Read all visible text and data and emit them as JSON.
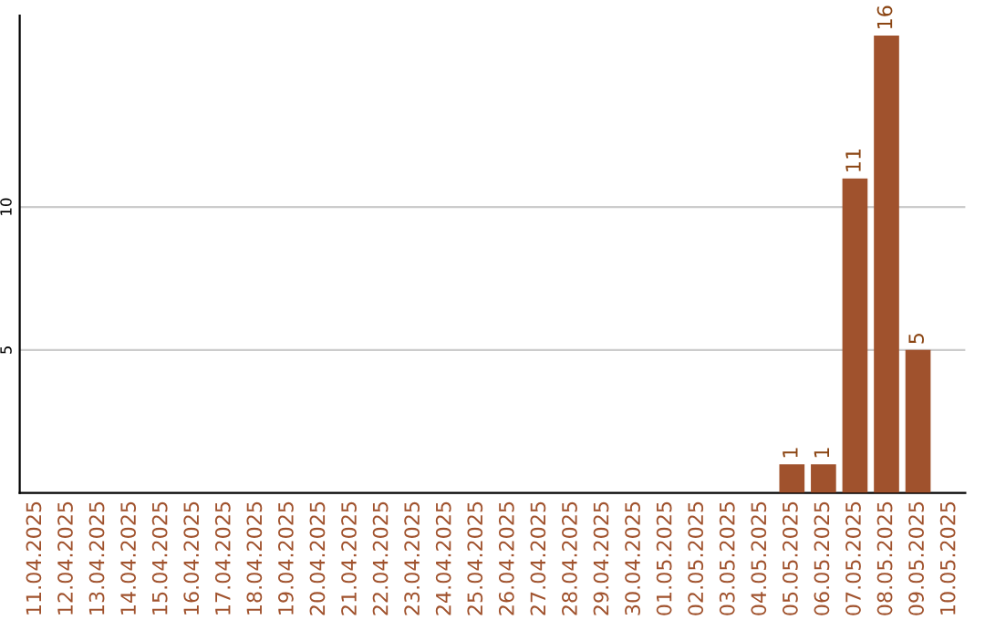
{
  "chart_data": {
    "type": "bar",
    "categories": [
      "11.04.2025",
      "12.04.2025",
      "13.04.2025",
      "14.04.2025",
      "15.04.2025",
      "16.04.2025",
      "17.04.2025",
      "18.04.2025",
      "19.04.2025",
      "20.04.2025",
      "21.04.2025",
      "22.04.2025",
      "23.04.2025",
      "24.04.2025",
      "25.04.2025",
      "26.04.2025",
      "27.04.2025",
      "28.04.2025",
      "29.04.2025",
      "30.04.2025",
      "01.05.2025",
      "02.05.2025",
      "03.05.2025",
      "04.05.2025",
      "05.05.2025",
      "06.05.2025",
      "07.05.2025",
      "08.05.2025",
      "09.05.2025",
      "10.05.2025"
    ],
    "values": [
      0,
      0,
      0,
      0,
      0,
      0,
      0,
      0,
      0,
      0,
      0,
      0,
      0,
      0,
      0,
      0,
      0,
      0,
      0,
      0,
      0,
      0,
      0,
      0,
      1,
      1,
      11,
      16,
      5,
      0
    ],
    "value_labels": [
      null,
      null,
      null,
      null,
      null,
      null,
      null,
      null,
      null,
      null,
      null,
      null,
      null,
      null,
      null,
      null,
      null,
      null,
      null,
      null,
      null,
      null,
      null,
      null,
      "1",
      "1",
      "11",
      "16",
      "5",
      null
    ],
    "color": "#a0522d",
    "ylim": [
      0,
      16.7
    ],
    "yticks": [
      5,
      10
    ],
    "grid": "y"
  }
}
